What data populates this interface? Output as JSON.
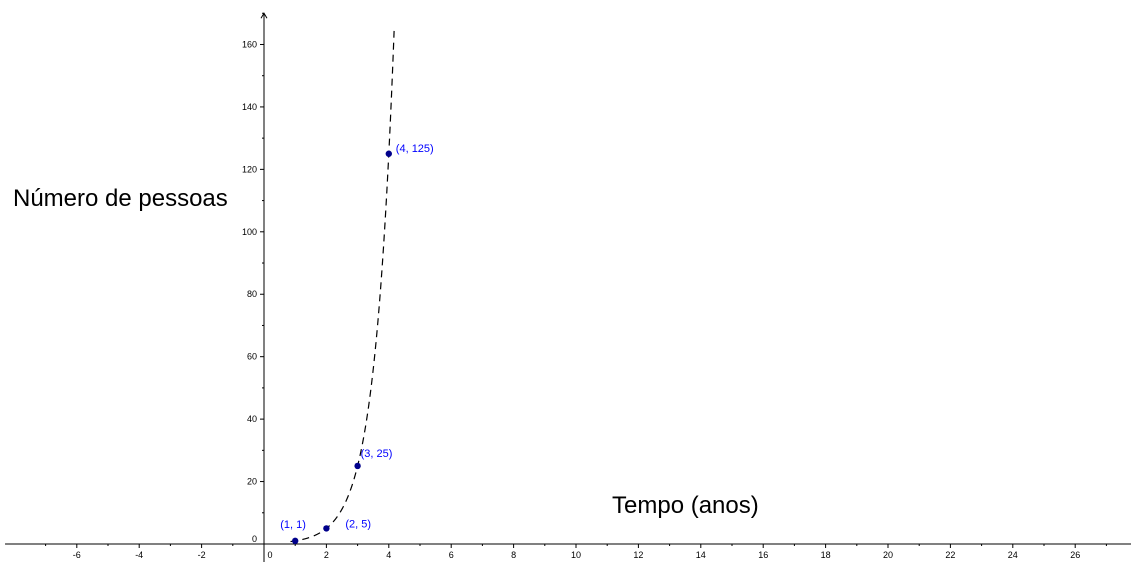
{
  "chart_data": {
    "type": "scatter",
    "xlabel": "Tempo (anos)",
    "ylabel": "Número de pessoas",
    "xlim": [
      -8.3,
      28.2
    ],
    "ylim": [
      -2,
      170
    ],
    "x_ticks": [
      -6,
      -4,
      -2,
      0,
      2,
      4,
      6,
      8,
      10,
      12,
      14,
      16,
      18,
      20,
      22,
      24,
      26
    ],
    "y_ticks": [
      0,
      20,
      40,
      60,
      80,
      100,
      120,
      140,
      160
    ],
    "grid": false,
    "points": [
      {
        "x": 1,
        "y": 1,
        "label": "(1, 1)"
      },
      {
        "x": 2,
        "y": 5,
        "label": "(2, 5)"
      },
      {
        "x": 3,
        "y": 25,
        "label": "(3, 25)"
      },
      {
        "x": 4,
        "y": 125,
        "label": "(4, 125)"
      }
    ],
    "curve": {
      "formula": "5^(x-1)",
      "style": "dashed",
      "color": "#000000"
    },
    "colors": {
      "point": "#00008b",
      "point_label": "#0000ff",
      "axis": "#000000"
    }
  }
}
